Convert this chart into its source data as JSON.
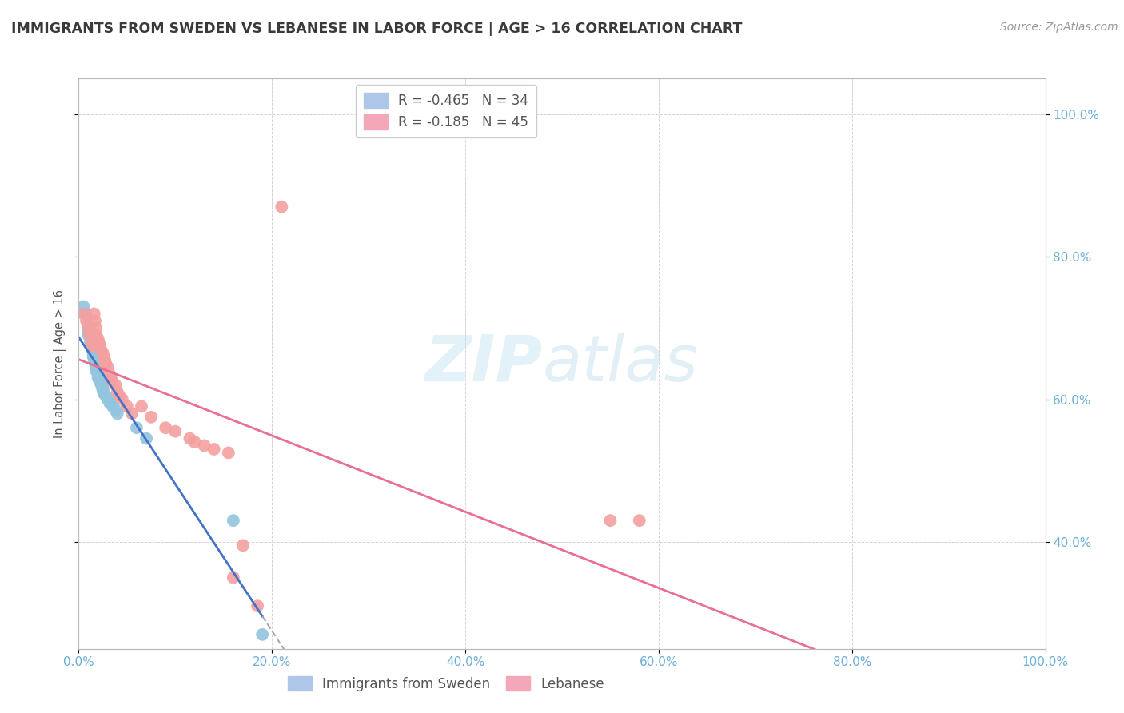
{
  "title": "IMMIGRANTS FROM SWEDEN VS LEBANESE IN LABOR FORCE | AGE > 16 CORRELATION CHART",
  "source": "Source: ZipAtlas.com",
  "ylabel": "In Labor Force | Age > 16",
  "xlim": [
    0.0,
    1.0
  ],
  "ylim": [
    0.25,
    1.05
  ],
  "xticks": [
    0.0,
    0.2,
    0.4,
    0.6,
    0.8,
    1.0
  ],
  "xtick_labels": [
    "0.0%",
    "20.0%",
    "40.0%",
    "60.0%",
    "80.0%",
    "100.0%"
  ],
  "right_ytick_labels": [
    "40.0%",
    "60.0%",
    "80.0%",
    "100.0%"
  ],
  "right_ytick_positions": [
    0.4,
    0.6,
    0.8,
    1.0
  ],
  "watermark_zip": "ZIP",
  "watermark_atlas": "atlas",
  "sweden_color": "#92c5de",
  "lebanese_color": "#f4a0a0",
  "sweden_line_color": "#4472c4",
  "lebanese_line_color": "#e87090",
  "background_color": "#ffffff",
  "grid_color": "#c8c8c8",
  "title_color": "#3a3a3a",
  "tick_color": "#6baed6",
  "sweden_points": [
    [
      0.005,
      0.73
    ],
    [
      0.007,
      0.72
    ],
    [
      0.008,
      0.715
    ],
    [
      0.01,
      0.7
    ],
    [
      0.01,
      0.695
    ],
    [
      0.01,
      0.69
    ],
    [
      0.012,
      0.68
    ],
    [
      0.013,
      0.675
    ],
    [
      0.014,
      0.67
    ],
    [
      0.015,
      0.665
    ],
    [
      0.015,
      0.66
    ],
    [
      0.016,
      0.655
    ],
    [
      0.017,
      0.65
    ],
    [
      0.018,
      0.645
    ],
    [
      0.018,
      0.64
    ],
    [
      0.02,
      0.635
    ],
    [
      0.02,
      0.63
    ],
    [
      0.021,
      0.628
    ],
    [
      0.022,
      0.625
    ],
    [
      0.023,
      0.622
    ],
    [
      0.024,
      0.618
    ],
    [
      0.025,
      0.615
    ],
    [
      0.025,
      0.612
    ],
    [
      0.026,
      0.608
    ],
    [
      0.028,
      0.605
    ],
    [
      0.03,
      0.6
    ],
    [
      0.032,
      0.595
    ],
    [
      0.035,
      0.59
    ],
    [
      0.038,
      0.585
    ],
    [
      0.04,
      0.58
    ],
    [
      0.06,
      0.56
    ],
    [
      0.07,
      0.545
    ],
    [
      0.16,
      0.43
    ],
    [
      0.19,
      0.27
    ]
  ],
  "lebanese_points": [
    [
      0.005,
      0.72
    ],
    [
      0.008,
      0.71
    ],
    [
      0.01,
      0.7
    ],
    [
      0.011,
      0.695
    ],
    [
      0.012,
      0.69
    ],
    [
      0.013,
      0.685
    ],
    [
      0.014,
      0.68
    ],
    [
      0.015,
      0.675
    ],
    [
      0.016,
      0.72
    ],
    [
      0.017,
      0.71
    ],
    [
      0.018,
      0.7
    ],
    [
      0.018,
      0.69
    ],
    [
      0.02,
      0.685
    ],
    [
      0.021,
      0.68
    ],
    [
      0.022,
      0.675
    ],
    [
      0.023,
      0.67
    ],
    [
      0.025,
      0.665
    ],
    [
      0.026,
      0.66
    ],
    [
      0.027,
      0.655
    ],
    [
      0.028,
      0.65
    ],
    [
      0.03,
      0.645
    ],
    [
      0.032,
      0.635
    ],
    [
      0.033,
      0.63
    ],
    [
      0.035,
      0.625
    ],
    [
      0.038,
      0.62
    ],
    [
      0.04,
      0.61
    ],
    [
      0.042,
      0.605
    ],
    [
      0.045,
      0.6
    ],
    [
      0.05,
      0.59
    ],
    [
      0.055,
      0.58
    ],
    [
      0.065,
      0.59
    ],
    [
      0.075,
      0.575
    ],
    [
      0.09,
      0.56
    ],
    [
      0.1,
      0.555
    ],
    [
      0.115,
      0.545
    ],
    [
      0.12,
      0.54
    ],
    [
      0.13,
      0.535
    ],
    [
      0.14,
      0.53
    ],
    [
      0.155,
      0.525
    ],
    [
      0.16,
      0.35
    ],
    [
      0.17,
      0.395
    ],
    [
      0.185,
      0.31
    ],
    [
      0.21,
      0.87
    ],
    [
      0.55,
      0.43
    ],
    [
      0.58,
      0.43
    ]
  ],
  "sw_line_xstart": 0.0,
  "sw_line_xend_solid": 0.19,
  "sw_line_xend_dash": 0.26,
  "lb_line_xstart": 0.0,
  "lb_line_xend": 1.0
}
